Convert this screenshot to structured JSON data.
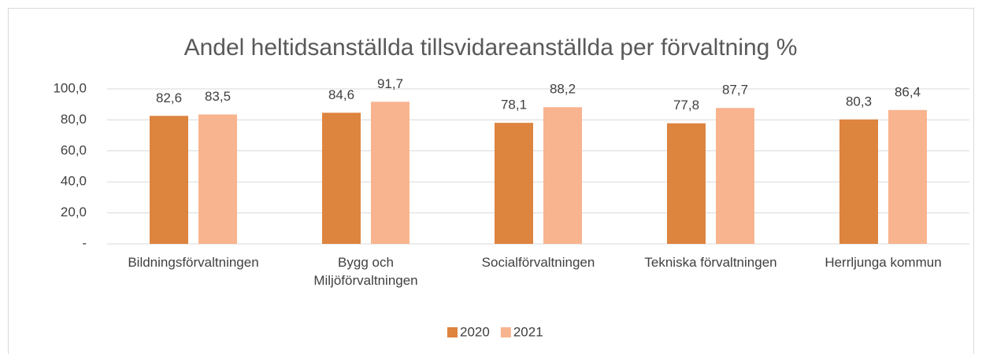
{
  "chart_data": {
    "type": "bar",
    "title": "Andel heltidsanställda tillsvidareanställda per förvaltning %",
    "categories": [
      "Bildningsförvaltningen",
      "Bygg och Miljöförvaltningen",
      "Socialförvaltningen",
      "Tekniska förvaltningen",
      "Herrljunga kommun"
    ],
    "series": [
      {
        "name": "2020",
        "color": "#dd843f",
        "values": [
          82.6,
          84.6,
          78.1,
          77.8,
          80.3
        ],
        "value_labels": [
          "82,6",
          "84,6",
          "78,1",
          "77,8",
          "80,3"
        ]
      },
      {
        "name": "2021",
        "color": "#f8b48f",
        "values": [
          83.5,
          91.7,
          88.2,
          87.7,
          86.4
        ],
        "value_labels": [
          "83,5",
          "91,7",
          "88,2",
          "87,7",
          "86,4"
        ]
      }
    ],
    "ylim": [
      0,
      100
    ],
    "yticks": [
      {
        "value": 0,
        "label": "-"
      },
      {
        "value": 20,
        "label": "20,0"
      },
      {
        "value": 40,
        "label": "40,0"
      },
      {
        "value": 60,
        "label": "60,0"
      },
      {
        "value": 80,
        "label": "80,0"
      },
      {
        "value": 100,
        "label": "100,0"
      }
    ],
    "grid": true,
    "legend": "bottom"
  }
}
